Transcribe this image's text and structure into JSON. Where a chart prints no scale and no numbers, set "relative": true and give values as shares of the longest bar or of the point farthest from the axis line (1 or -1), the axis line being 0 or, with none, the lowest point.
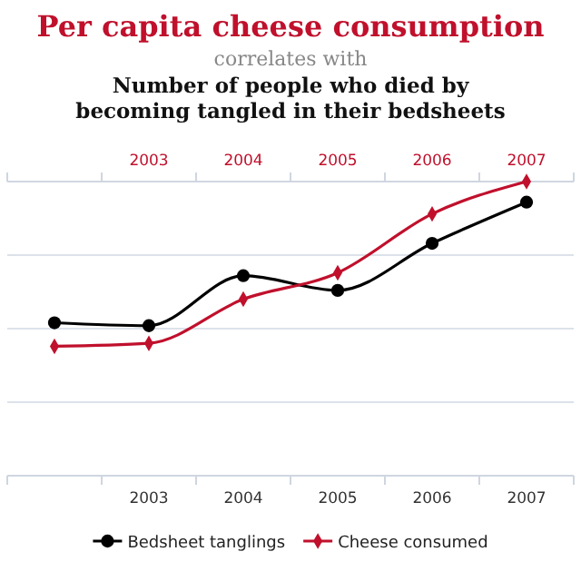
{
  "chart_data": {
    "type": "line",
    "title": "Per capita cheese consumption",
    "subtitle": "correlates with",
    "annotations": [
      "Number of people who died by becoming tangled in their bedsheets"
    ],
    "categories": [
      null,
      "2003",
      "2004",
      "2005",
      "2006",
      "2007"
    ],
    "relative": true,
    "series": [
      {
        "name": "Bedsheet tanglings",
        "color": "#000000",
        "marker": "circle",
        "values": [
          0.52,
          0.51,
          0.68,
          0.63,
          0.79,
          0.93
        ]
      },
      {
        "name": "Cheese consumed",
        "color": "#c0102c",
        "marker": "diamond",
        "values": [
          0.44,
          0.45,
          0.6,
          0.69,
          0.89,
          1.0
        ]
      }
    ],
    "grid": "y",
    "legend": "bottom"
  }
}
